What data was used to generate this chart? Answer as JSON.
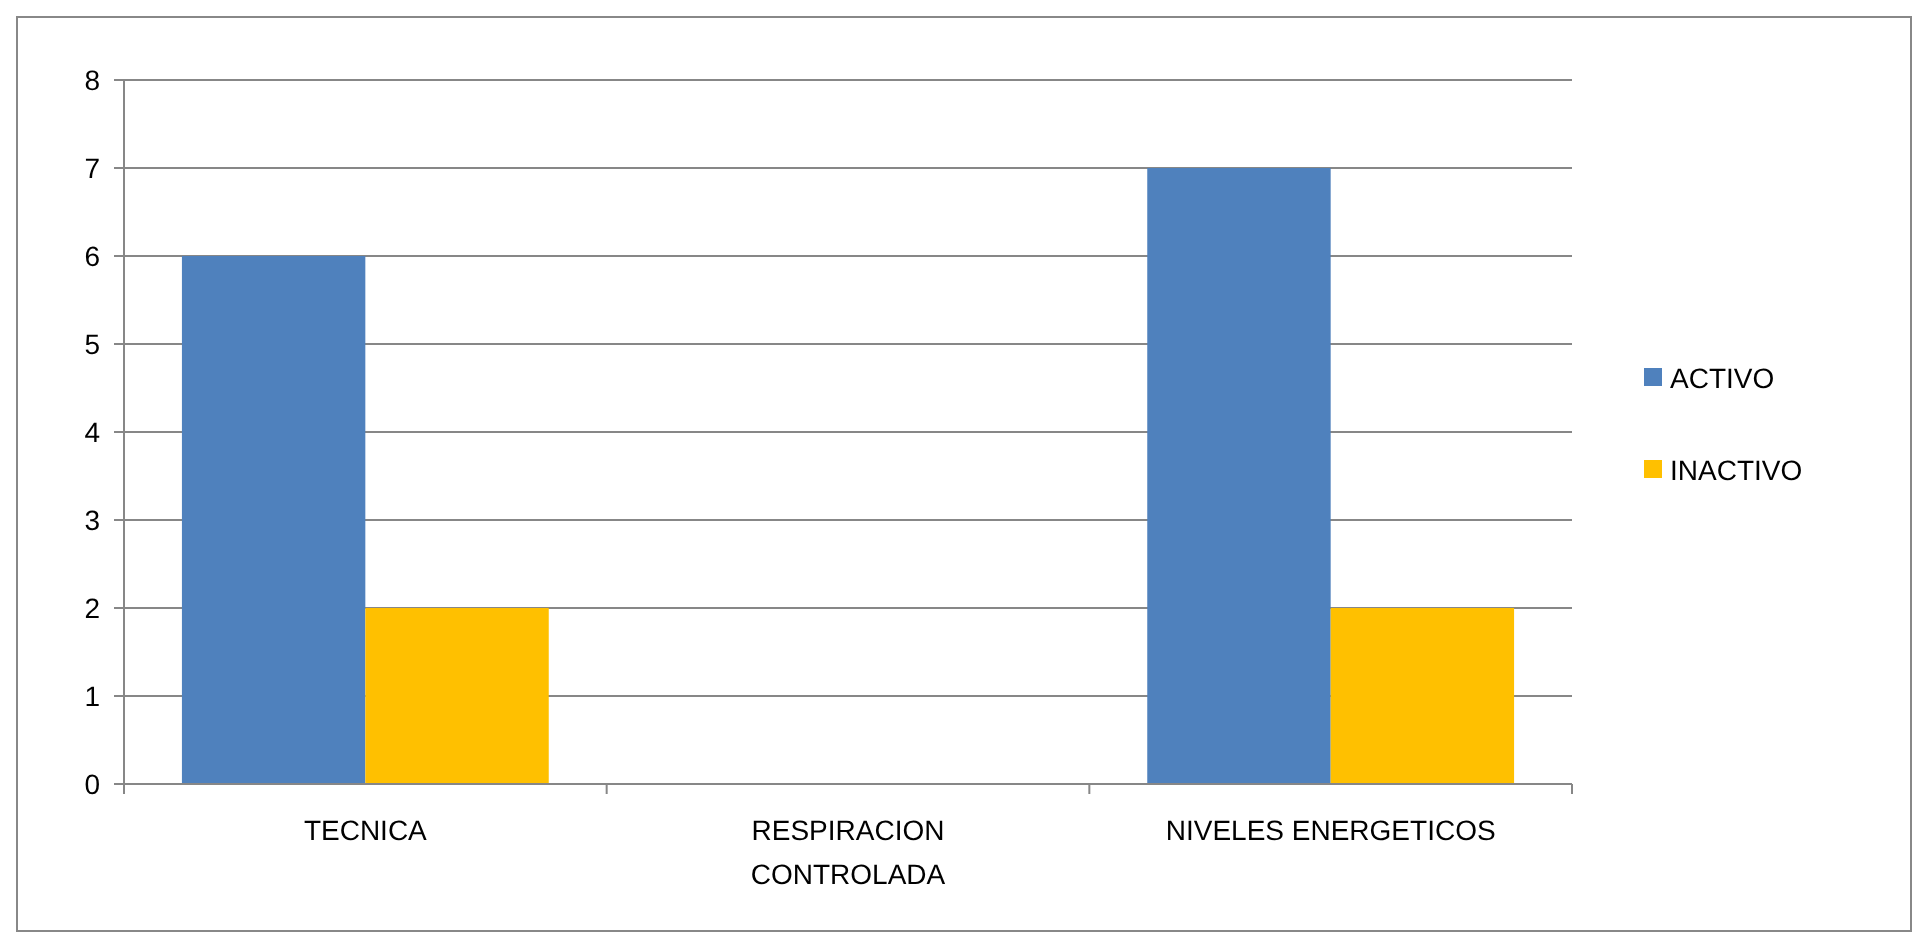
{
  "chart_data": {
    "type": "bar",
    "categories": [
      "TECNICA",
      "RESPIRACION CONTROLADA",
      "NIVELES ENERGETICOS"
    ],
    "series": [
      {
        "name": "ACTIVO",
        "color": "#4f81bd",
        "values": [
          6,
          0,
          7
        ]
      },
      {
        "name": "INACTIVO",
        "color": "#ffc000",
        "values": [
          2,
          0,
          2
        ]
      }
    ],
    "ylim": [
      0,
      8
    ],
    "yticks": [
      0,
      1,
      2,
      3,
      4,
      5,
      6,
      7,
      8
    ],
    "grid": "y",
    "legend": "right"
  }
}
